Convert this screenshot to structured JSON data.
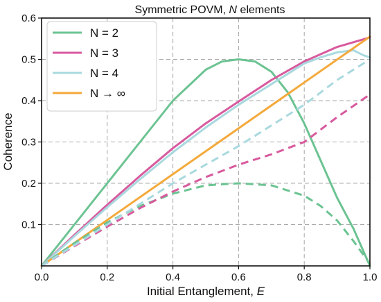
{
  "chart_data": {
    "type": "line",
    "title_prefix": "Symmetric POVM, ",
    "title_italic": "N",
    "title_suffix": " elements",
    "xlabel_prefix": "Initial Entanglement, ",
    "xlabel_italic": "E",
    "ylabel": "Coherence",
    "xlim": [
      0,
      1
    ],
    "ylim": [
      0,
      0.6
    ],
    "xticks": [
      0,
      0.2,
      0.4,
      0.6,
      0.8,
      1.0
    ],
    "xtick_labels": [
      "0.0",
      "0.2",
      "0.4",
      "0.6",
      "0.8",
      "1.0"
    ],
    "yticks": [
      0.1,
      0.2,
      0.3,
      0.4,
      0.5,
      0.6
    ],
    "ytick_labels": [
      "0.1",
      "0.2",
      "0.3",
      "0.4",
      "0.5",
      "0.6"
    ],
    "grid": true,
    "legend_position": "top-left",
    "legend": [
      {
        "label": "N = 2",
        "color": "#6cc392"
      },
      {
        "label": "N = 3",
        "color": "#d85a9e"
      },
      {
        "label": "N = 4",
        "color": "#a9d9df"
      },
      {
        "label": "N → ∞",
        "color": "#f4a93b"
      }
    ],
    "series": [
      {
        "name": "N = 2",
        "style": "solid",
        "color": "#6cc392",
        "x": [
          0,
          0.1,
          0.2,
          0.3,
          0.4,
          0.5,
          0.55,
          0.6,
          0.65,
          0.7,
          0.75,
          0.8,
          0.85,
          0.9,
          0.95,
          1.0
        ],
        "y": [
          0,
          0.1,
          0.2,
          0.3,
          0.4,
          0.475,
          0.495,
          0.5,
          0.495,
          0.47,
          0.42,
          0.345,
          0.255,
          0.165,
          0.09,
          0
        ]
      },
      {
        "name": "N = 3",
        "style": "solid",
        "color": "#d85a9e",
        "x": [
          0,
          0.1,
          0.2,
          0.3,
          0.4,
          0.5,
          0.6,
          0.7,
          0.8,
          0.9,
          1.0
        ],
        "y": [
          0,
          0.075,
          0.148,
          0.218,
          0.285,
          0.345,
          0.398,
          0.45,
          0.495,
          0.53,
          0.553
        ]
      },
      {
        "name": "N = 4",
        "style": "solid",
        "color": "#a9d9df",
        "x": [
          0,
          0.1,
          0.2,
          0.3,
          0.4,
          0.5,
          0.6,
          0.7,
          0.8,
          0.85,
          0.9,
          0.95,
          0.98,
          1.0
        ],
        "y": [
          0,
          0.072,
          0.142,
          0.21,
          0.275,
          0.335,
          0.39,
          0.44,
          0.49,
          0.505,
          0.517,
          0.522,
          0.51,
          0.505
        ]
      },
      {
        "name": "N → ∞",
        "style": "solid",
        "color": "#f4a93b",
        "x": [
          0,
          0.2,
          0.4,
          0.6,
          0.8,
          1.0
        ],
        "y": [
          0,
          0.111,
          0.222,
          0.333,
          0.444,
          0.555
        ]
      },
      {
        "style": "dashed",
        "color": "#6cc392",
        "x": [
          0,
          0.1,
          0.2,
          0.3,
          0.4,
          0.5,
          0.6,
          0.7,
          0.8,
          0.85,
          0.9,
          0.95,
          1.0
        ],
        "y": [
          0,
          0.055,
          0.105,
          0.145,
          0.175,
          0.195,
          0.2,
          0.195,
          0.17,
          0.145,
          0.11,
          0.06,
          0.005
        ]
      },
      {
        "style": "dashed",
        "color": "#d85a9e",
        "x": [
          0,
          0.1,
          0.2,
          0.3,
          0.4,
          0.5,
          0.6,
          0.7,
          0.8,
          0.9,
          1.0
        ],
        "y": [
          0,
          0.048,
          0.095,
          0.14,
          0.18,
          0.215,
          0.245,
          0.27,
          0.3,
          0.36,
          0.415
        ]
      },
      {
        "style": "dashed",
        "color": "#a9d9df",
        "x": [
          0,
          0.1,
          0.2,
          0.3,
          0.4,
          0.5,
          0.6,
          0.7,
          0.8,
          0.9,
          1.0
        ],
        "y": [
          0,
          0.05,
          0.1,
          0.15,
          0.2,
          0.245,
          0.29,
          0.34,
          0.39,
          0.45,
          0.5
        ]
      }
    ]
  }
}
